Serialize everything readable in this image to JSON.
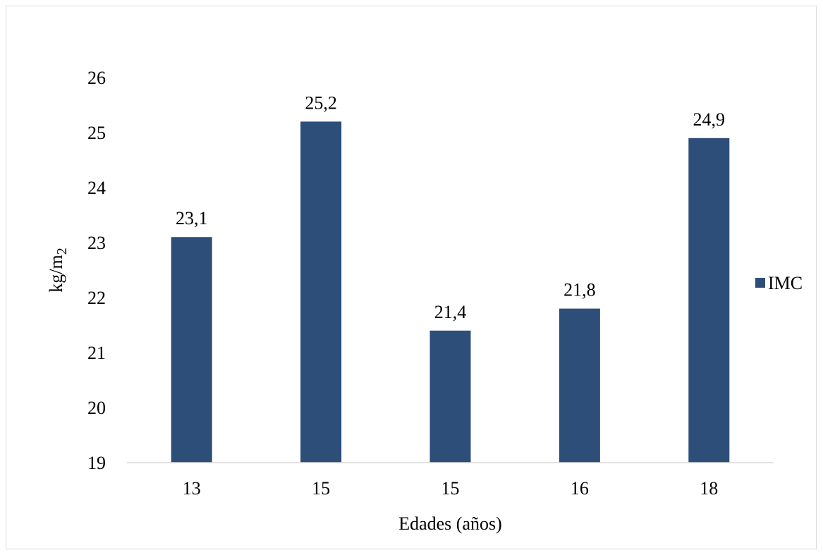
{
  "chart_data": {
    "type": "bar",
    "title": "",
    "xlabel": "Edades (años)",
    "ylabel": "kg/m",
    "ylabel_subscript": "2",
    "categories": [
      "13",
      "15",
      "15",
      "16",
      "18"
    ],
    "series": [
      {
        "name": "IMC",
        "values": [
          23.1,
          25.2,
          21.4,
          21.8,
          24.9
        ],
        "color": "#2e4e7a"
      }
    ],
    "data_labels": [
      "23,1",
      "25,2",
      "21,4",
      "21,8",
      "24,9"
    ],
    "ylim": [
      19,
      26
    ],
    "yticks": [
      19,
      20,
      21,
      22,
      23,
      24,
      25,
      26
    ],
    "grid": false,
    "legend_position": "right",
    "axis_color": "#d9d9d9"
  }
}
